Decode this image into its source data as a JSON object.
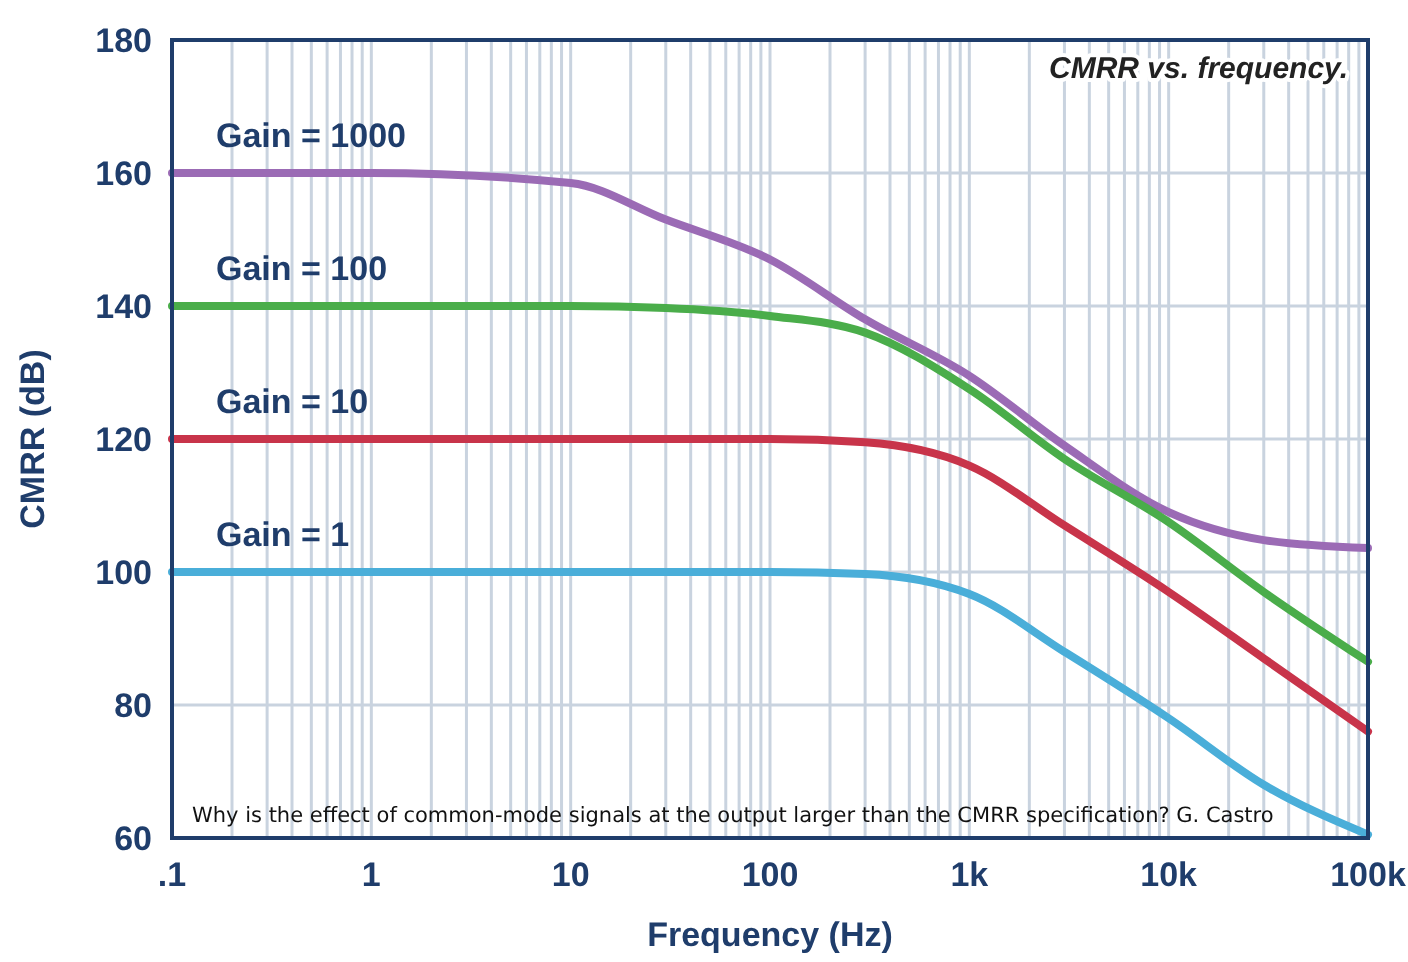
{
  "chart_data": {
    "type": "line",
    "title": "CMRR vs. frequency.",
    "xlabel": "Frequency (Hz)",
    "ylabel": "CMRR (dB)",
    "log": "x",
    "grid": true,
    "marker": "none",
    "line_style": "solid",
    "annotations": [
      "Why is the effect of common-mode signals at the output larger than the CMRR specification? G. Castro"
    ],
    "x": [
      0.1,
      1,
      10,
      30,
      100,
      300,
      1000,
      3000,
      10000,
      30000,
      100000
    ],
    "xlim": [
      0.1,
      100000
    ],
    "ylim": [
      60,
      180
    ],
    "yticks": [
      60,
      80,
      100,
      120,
      140,
      160,
      180
    ],
    "xticks": [
      {
        "value": 0.1,
        "label": ".1"
      },
      {
        "value": 0.2,
        "label": null
      },
      {
        "value": 0.3,
        "label": null
      },
      {
        "value": 0.4,
        "label": null
      },
      {
        "value": 0.5,
        "label": null
      },
      {
        "value": 0.6,
        "label": null
      },
      {
        "value": 0.7,
        "label": null
      },
      {
        "value": 0.8,
        "label": null
      },
      {
        "value": 0.9,
        "label": null
      },
      {
        "value": 1,
        "label": "1"
      },
      {
        "value": 2,
        "label": null
      },
      {
        "value": 3,
        "label": null
      },
      {
        "value": 4,
        "label": null
      },
      {
        "value": 5,
        "label": null
      },
      {
        "value": 6,
        "label": null
      },
      {
        "value": 7,
        "label": null
      },
      {
        "value": 8,
        "label": null
      },
      {
        "value": 9,
        "label": null
      },
      {
        "value": 10,
        "label": "10"
      },
      {
        "value": 20,
        "label": null
      },
      {
        "value": 30,
        "label": null
      },
      {
        "value": 40,
        "label": null
      },
      {
        "value": 50,
        "label": null
      },
      {
        "value": 60,
        "label": null
      },
      {
        "value": 70,
        "label": null
      },
      {
        "value": 80,
        "label": null
      },
      {
        "value": 90,
        "label": null
      },
      {
        "value": 100,
        "label": "100"
      },
      {
        "value": 200,
        "label": null
      },
      {
        "value": 300,
        "label": null
      },
      {
        "value": 400,
        "label": null
      },
      {
        "value": 500,
        "label": null
      },
      {
        "value": 600,
        "label": null
      },
      {
        "value": 700,
        "label": null
      },
      {
        "value": 800,
        "label": null
      },
      {
        "value": 900,
        "label": null
      },
      {
        "value": 1000,
        "label": "1k"
      },
      {
        "value": 2000,
        "label": null
      },
      {
        "value": 3000,
        "label": null
      },
      {
        "value": 4000,
        "label": null
      },
      {
        "value": 5000,
        "label": null
      },
      {
        "value": 6000,
        "label": null
      },
      {
        "value": 7000,
        "label": null
      },
      {
        "value": 8000,
        "label": null
      },
      {
        "value": 9000,
        "label": null
      },
      {
        "value": 10000,
        "label": "10k"
      },
      {
        "value": 20000,
        "label": null
      },
      {
        "value": 30000,
        "label": null
      },
      {
        "value": 40000,
        "label": null
      },
      {
        "value": 50000,
        "label": null
      },
      {
        "value": 60000,
        "label": null
      },
      {
        "value": 70000,
        "label": null
      },
      {
        "value": 80000,
        "label": null
      },
      {
        "value": 90000,
        "label": null
      },
      {
        "value": 100000,
        "label": "100k"
      }
    ],
    "series": [
      {
        "name": "Gain = 1000",
        "color": "#9b6bb5",
        "values": [
          160,
          160,
          158.5,
          153,
          147,
          138,
          129.5,
          119,
          109,
          104.8,
          103.6
        ]
      },
      {
        "name": "Gain = 100",
        "color": "#4aad4a",
        "values": [
          140,
          140,
          140,
          139.7,
          138.5,
          136,
          127.5,
          117,
          107.5,
          97,
          86.5
        ]
      },
      {
        "name": "Gain = 10",
        "color": "#c8344a",
        "values": [
          120,
          120,
          120,
          120,
          120,
          119.5,
          116,
          107,
          97,
          87,
          76
        ]
      },
      {
        "name": "Gain = 1",
        "color": "#4aaed9",
        "values": [
          100,
          100,
          100,
          100,
          100,
          99.7,
          96.7,
          88,
          78,
          68,
          60.5
        ]
      }
    ]
  }
}
